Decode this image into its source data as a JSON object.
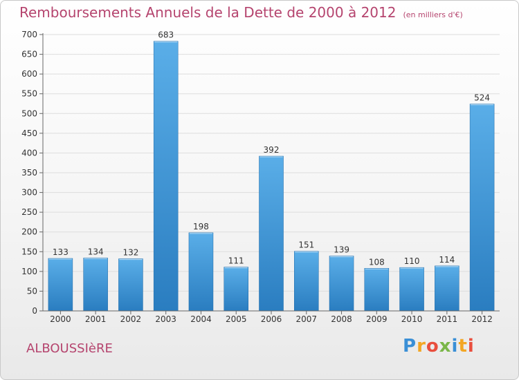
{
  "title": "Remboursements Annuels de la Dette de 2000 à 2012",
  "subtitle": "(en milliers d'€)",
  "commune": "ALBOUSSIèRE",
  "brand": {
    "letters": [
      "P",
      "r",
      "o",
      "x",
      "i",
      "t",
      "i"
    ],
    "colors": [
      "#3a8fd6",
      "#f3a623",
      "#e94e3d",
      "#7ab648",
      "#3a8fd6",
      "#f3a623",
      "#e94e3d"
    ]
  },
  "colors": {
    "bar_top": "#5aaee8",
    "bar_bottom": "#2a7dc0",
    "axis": "#666666",
    "grid": "#dddddd",
    "accent": "#b5446e"
  },
  "chart_data": {
    "type": "bar",
    "categories": [
      "2000",
      "2001",
      "2002",
      "2003",
      "2004",
      "2005",
      "2006",
      "2007",
      "2008",
      "2009",
      "2010",
      "2011",
      "2012"
    ],
    "values": [
      133,
      134,
      132,
      683,
      198,
      111,
      392,
      151,
      139,
      108,
      110,
      114,
      524
    ],
    "ylim": [
      0,
      700
    ],
    "yticks": [
      "0",
      "50",
      "100",
      "150",
      "200",
      "250",
      "300",
      "350",
      "400",
      "450",
      "500",
      "550",
      "600",
      "650",
      "700"
    ],
    "grid": true,
    "data_labels": true
  }
}
